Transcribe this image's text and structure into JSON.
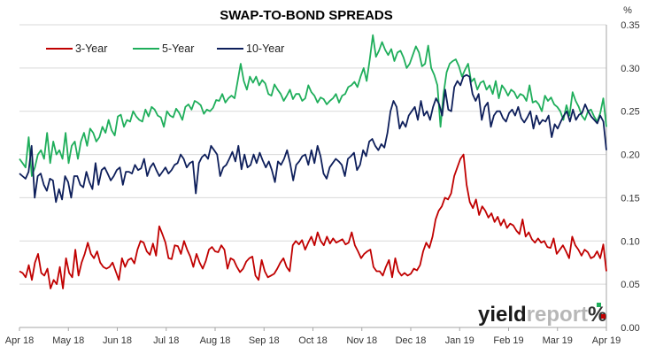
{
  "chart_data": {
    "type": "line",
    "title": "SWAP-TO-BOND SPREADS",
    "y_unit_label": "%",
    "ylim": [
      0,
      0.35
    ],
    "y_ticks": [
      "0.00",
      "0.05",
      "0.10",
      "0.15",
      "0.20",
      "0.25",
      "0.30",
      "0.35"
    ],
    "x_tick_labels": [
      "Apr 18",
      "May 18",
      "Jun 18",
      "Jul 18",
      "Aug 18",
      "Sep 18",
      "Oct 18",
      "Nov 18",
      "Dec 18",
      "Jan 19",
      "Feb 19",
      "Mar 19",
      "Apr 19"
    ],
    "grid": "horizontal",
    "legend_position": "top-left",
    "colors": {
      "3-Year": "#c00000",
      "5-Year": "#1fae5b",
      "10-Year": "#0e1f5b"
    },
    "series": [
      {
        "name": "3-Year",
        "values": [
          0.065,
          0.063,
          0.058,
          0.072,
          0.055,
          0.075,
          0.085,
          0.063,
          0.06,
          0.068,
          0.045,
          0.055,
          0.05,
          0.07,
          0.045,
          0.08,
          0.063,
          0.058,
          0.09,
          0.06,
          0.075,
          0.085,
          0.098,
          0.085,
          0.08,
          0.088,
          0.075,
          0.07,
          0.068,
          0.07,
          0.075,
          0.065,
          0.055,
          0.08,
          0.07,
          0.078,
          0.08,
          0.074,
          0.09,
          0.1,
          0.098,
          0.088,
          0.084,
          0.097,
          0.083,
          0.117,
          0.108,
          0.098,
          0.08,
          0.079,
          0.095,
          0.094,
          0.085,
          0.1,
          0.09,
          0.082,
          0.07,
          0.085,
          0.075,
          0.068,
          0.077,
          0.09,
          0.093,
          0.088,
          0.087,
          0.095,
          0.09,
          0.068,
          0.08,
          0.078,
          0.07,
          0.064,
          0.068,
          0.076,
          0.08,
          0.082,
          0.06,
          0.055,
          0.078,
          0.065,
          0.058,
          0.06,
          0.062,
          0.068,
          0.075,
          0.08,
          0.07,
          0.065,
          0.095,
          0.1,
          0.096,
          0.101,
          0.09,
          0.098,
          0.105,
          0.095,
          0.11,
          0.1,
          0.095,
          0.105,
          0.097,
          0.103,
          0.098,
          0.1,
          0.102,
          0.096,
          0.098,
          0.11,
          0.095,
          0.088,
          0.08,
          0.085,
          0.088,
          0.09,
          0.07,
          0.065,
          0.065,
          0.06,
          0.07,
          0.078,
          0.058,
          0.08,
          0.065,
          0.06,
          0.063,
          0.06,
          0.062,
          0.068,
          0.066,
          0.072,
          0.088,
          0.098,
          0.092,
          0.105,
          0.125,
          0.135,
          0.14,
          0.15,
          0.148,
          0.155,
          0.175,
          0.185,
          0.195,
          0.2,
          0.165,
          0.145,
          0.138,
          0.148,
          0.13,
          0.14,
          0.135,
          0.127,
          0.132,
          0.122,
          0.128,
          0.118,
          0.125,
          0.115,
          0.12,
          0.118,
          0.112,
          0.108,
          0.125,
          0.105,
          0.11,
          0.102,
          0.098,
          0.103,
          0.098,
          0.1,
          0.093,
          0.092,
          0.103,
          0.085,
          0.09,
          0.095,
          0.088,
          0.08,
          0.105,
          0.095,
          0.09,
          0.083,
          0.09,
          0.087,
          0.08,
          0.082,
          0.088,
          0.08,
          0.096,
          0.065
        ]
      },
      {
        "name": "5-Year",
        "values": [
          0.195,
          0.19,
          0.185,
          0.22,
          0.175,
          0.185,
          0.2,
          0.205,
          0.195,
          0.225,
          0.19,
          0.215,
          0.2,
          0.205,
          0.195,
          0.225,
          0.19,
          0.21,
          0.215,
          0.195,
          0.215,
          0.225,
          0.21,
          0.23,
          0.225,
          0.215,
          0.22,
          0.232,
          0.225,
          0.24,
          0.228,
          0.222,
          0.244,
          0.246,
          0.232,
          0.24,
          0.238,
          0.25,
          0.244,
          0.24,
          0.238,
          0.252,
          0.244,
          0.255,
          0.252,
          0.245,
          0.243,
          0.232,
          0.25,
          0.245,
          0.243,
          0.253,
          0.248,
          0.24,
          0.255,
          0.258,
          0.252,
          0.262,
          0.26,
          0.257,
          0.247,
          0.252,
          0.25,
          0.254,
          0.263,
          0.262,
          0.27,
          0.26,
          0.265,
          0.268,
          0.265,
          0.285,
          0.305,
          0.285,
          0.275,
          0.29,
          0.283,
          0.29,
          0.28,
          0.286,
          0.282,
          0.27,
          0.268,
          0.281,
          0.275,
          0.27,
          0.262,
          0.268,
          0.275,
          0.264,
          0.27,
          0.27,
          0.262,
          0.265,
          0.28,
          0.272,
          0.268,
          0.26,
          0.266,
          0.264,
          0.258,
          0.262,
          0.265,
          0.27,
          0.26,
          0.268,
          0.27,
          0.278,
          0.28,
          0.284,
          0.278,
          0.29,
          0.3,
          0.285,
          0.31,
          0.338,
          0.313,
          0.32,
          0.33,
          0.321,
          0.315,
          0.322,
          0.308,
          0.318,
          0.32,
          0.312,
          0.3,
          0.305,
          0.315,
          0.325,
          0.318,
          0.302,
          0.305,
          0.326,
          0.3,
          0.292,
          0.28,
          0.232,
          0.27,
          0.295,
          0.305,
          0.308,
          0.31,
          0.302,
          0.29,
          0.298,
          0.305,
          0.284,
          0.288,
          0.275,
          0.283,
          0.285,
          0.275,
          0.28,
          0.27,
          0.285,
          0.265,
          0.28,
          0.275,
          0.268,
          0.275,
          0.272,
          0.265,
          0.27,
          0.268,
          0.262,
          0.28,
          0.26,
          0.262,
          0.258,
          0.25,
          0.268,
          0.262,
          0.266,
          0.258,
          0.255,
          0.25,
          0.24,
          0.257,
          0.245,
          0.272,
          0.262,
          0.255,
          0.245,
          0.24,
          0.25,
          0.252,
          0.244,
          0.238,
          0.248,
          0.265,
          0.232
        ]
      },
      {
        "name": "10-Year",
        "values": [
          0.178,
          0.175,
          0.172,
          0.18,
          0.21,
          0.15,
          0.175,
          0.178,
          0.165,
          0.158,
          0.172,
          0.17,
          0.145,
          0.16,
          0.148,
          0.175,
          0.168,
          0.15,
          0.175,
          0.175,
          0.165,
          0.162,
          0.18,
          0.168,
          0.16,
          0.19,
          0.165,
          0.182,
          0.185,
          0.178,
          0.17,
          0.175,
          0.182,
          0.185,
          0.165,
          0.18,
          0.18,
          0.178,
          0.188,
          0.182,
          0.184,
          0.195,
          0.175,
          0.185,
          0.19,
          0.182,
          0.175,
          0.18,
          0.185,
          0.178,
          0.182,
          0.188,
          0.19,
          0.2,
          0.195,
          0.185,
          0.19,
          0.192,
          0.155,
          0.19,
          0.197,
          0.2,
          0.195,
          0.21,
          0.205,
          0.2,
          0.175,
          0.185,
          0.188,
          0.195,
          0.203,
          0.192,
          0.21,
          0.183,
          0.2,
          0.185,
          0.188,
          0.2,
          0.19,
          0.202,
          0.193,
          0.185,
          0.192,
          0.182,
          0.168,
          0.192,
          0.188,
          0.195,
          0.205,
          0.19,
          0.17,
          0.188,
          0.192,
          0.198,
          0.2,
          0.188,
          0.205,
          0.19,
          0.21,
          0.198,
          0.178,
          0.172,
          0.185,
          0.19,
          0.195,
          0.192,
          0.188,
          0.175,
          0.195,
          0.198,
          0.202,
          0.182,
          0.188,
          0.205,
          0.198,
          0.215,
          0.218,
          0.21,
          0.205,
          0.212,
          0.208,
          0.225,
          0.25,
          0.262,
          0.255,
          0.23,
          0.238,
          0.232,
          0.245,
          0.25,
          0.255,
          0.24,
          0.262,
          0.245,
          0.25,
          0.24,
          0.255,
          0.265,
          0.258,
          0.245,
          0.275,
          0.252,
          0.25,
          0.278,
          0.285,
          0.28,
          0.29,
          0.292,
          0.29,
          0.27,
          0.262,
          0.27,
          0.24,
          0.255,
          0.26,
          0.232,
          0.245,
          0.25,
          0.25,
          0.242,
          0.238,
          0.248,
          0.252,
          0.245,
          0.255,
          0.242,
          0.237,
          0.243,
          0.25,
          0.23,
          0.245,
          0.235,
          0.24,
          0.238,
          0.245,
          0.22,
          0.235,
          0.23,
          0.238,
          0.245,
          0.25,
          0.238,
          0.252,
          0.24,
          0.246,
          0.248,
          0.258,
          0.25,
          0.244,
          0.24,
          0.236,
          0.245,
          0.238,
          0.205
        ]
      }
    ]
  },
  "brand": {
    "part1": "yield",
    "part2": "report",
    "part3": "%"
  }
}
